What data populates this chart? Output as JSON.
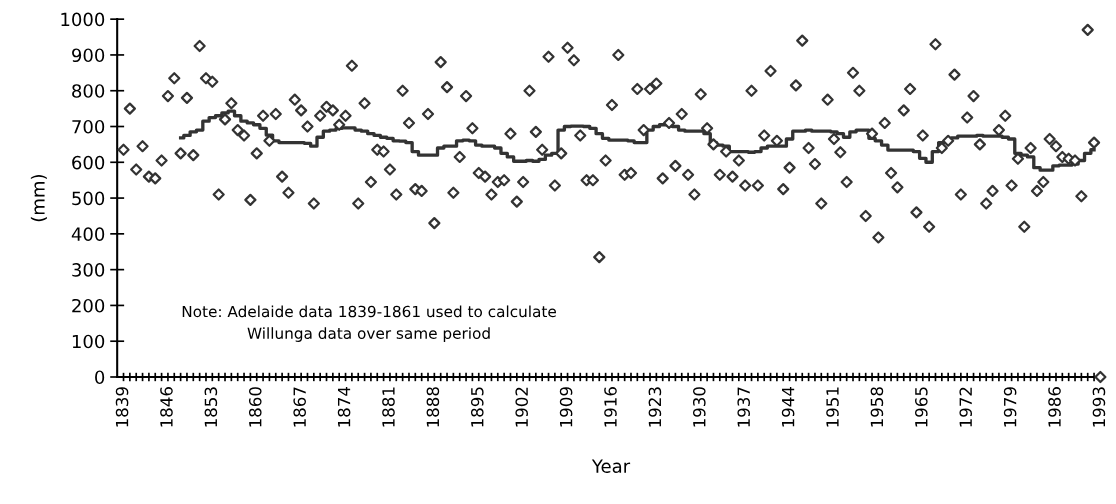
{
  "chart_data": {
    "type": "scatter",
    "xlabel": "Year",
    "ylabel": "(mm)",
    "categories": [
      "1839",
      null,
      null,
      null,
      null,
      null,
      null,
      "1846",
      null,
      null,
      null,
      null,
      null,
      null,
      "1853",
      null,
      null,
      null,
      null,
      null,
      null,
      "1860",
      null,
      null,
      null,
      null,
      null,
      null,
      "1867",
      null,
      null,
      null,
      null,
      null,
      null,
      "1874",
      null,
      null,
      null,
      null,
      null,
      null,
      "1881",
      null,
      null,
      null,
      null,
      null,
      null,
      "1888",
      null,
      null,
      null,
      null,
      null,
      null,
      "1895",
      null,
      null,
      null,
      null,
      null,
      null,
      "1902",
      null,
      null,
      null,
      null,
      null,
      null,
      "1909",
      null,
      null,
      null,
      null,
      null,
      null,
      "1916",
      null,
      null,
      null,
      null,
      null,
      null,
      "1923",
      null,
      null,
      null,
      null,
      null,
      null,
      "1930",
      null,
      null,
      null,
      null,
      null,
      null,
      "1937",
      null,
      null,
      null,
      null,
      null,
      null,
      "1944",
      null,
      null,
      null,
      null,
      null,
      null,
      "1951",
      null,
      null,
      null,
      null,
      null,
      null,
      "1958",
      null,
      null,
      null,
      null,
      null,
      null,
      "1965",
      null,
      null,
      null,
      null,
      null,
      null,
      "1972",
      null,
      null,
      null,
      null,
      null,
      null,
      "1979",
      null,
      null,
      null,
      null,
      null,
      null,
      "1986",
      null,
      null,
      null,
      null,
      null,
      null,
      "1993"
    ],
    "series": [
      {
        "color": "#333333",
        "marker": "diamond",
        "values": [
          635,
          750,
          580,
          645,
          560,
          555,
          605,
          785,
          835,
          625,
          780,
          620,
          925,
          835,
          825,
          510,
          720,
          765,
          690,
          675,
          495,
          625,
          730,
          660,
          735,
          560,
          515,
          775,
          745,
          700,
          485,
          730,
          755,
          745,
          705,
          730,
          870,
          485,
          765,
          545,
          635,
          630,
          580,
          510,
          800,
          710,
          525,
          520,
          735,
          430,
          880,
          810,
          515,
          615,
          785,
          695,
          570,
          560,
          510,
          545,
          550,
          680,
          490,
          545,
          800,
          685,
          635,
          895,
          535,
          625,
          920,
          885,
          675,
          550,
          550,
          335,
          605,
          760,
          900,
          565,
          570,
          805,
          690,
          805,
          820,
          555,
          710,
          590,
          735,
          565,
          510,
          790,
          695,
          650,
          565,
          630,
          560,
          605,
          535,
          800,
          535,
          675,
          855,
          660,
          525,
          585,
          815,
          940,
          640,
          595,
          485,
          775,
          665,
          628,
          545,
          850,
          800,
          450,
          680,
          390,
          710,
          570,
          530,
          745,
          805,
          460,
          675,
          420,
          930,
          640,
          660,
          845,
          510,
          725,
          785,
          650,
          485,
          520,
          690,
          730,
          535,
          610,
          420,
          640,
          520,
          545,
          665,
          645,
          615,
          610,
          605,
          505,
          970,
          655,
          0
        ]
      },
      {
        "type": "step",
        "color": "#333333",
        "marker": "none",
        "line_style": "solid",
        "values": [
          null,
          null,
          null,
          null,
          null,
          null,
          null,
          null,
          null,
          668,
          675,
          685,
          690,
          715,
          725,
          730,
          738,
          743,
          730,
          715,
          710,
          705,
          695,
          676,
          660,
          655,
          655,
          655,
          655,
          653,
          645,
          670,
          687,
          690,
          695,
          696,
          696,
          690,
          687,
          680,
          675,
          670,
          667,
          660,
          659,
          655,
          630,
          620,
          620,
          620,
          640,
          645,
          645,
          660,
          662,
          660,
          648,
          645,
          645,
          640,
          625,
          615,
          603,
          603,
          605,
          603,
          608,
          620,
          625,
          690,
          700,
          701,
          701,
          700,
          695,
          680,
          667,
          662,
          662,
          662,
          660,
          655,
          655,
          690,
          700,
          705,
          705,
          700,
          690,
          687,
          687,
          687,
          680,
          655,
          648,
          645,
          630,
          630,
          630,
          628,
          630,
          640,
          645,
          645,
          645,
          665,
          687,
          687,
          690,
          687,
          687,
          687,
          685,
          680,
          670,
          685,
          690,
          690,
          667,
          660,
          648,
          634,
          634,
          634,
          634,
          630,
          611,
          600,
          630,
          655,
          660,
          668,
          673,
          673,
          673,
          675,
          673,
          673,
          673,
          670,
          665,
          625,
          620,
          615,
          585,
          578,
          578,
          590,
          592,
          592,
          595,
          605,
          625,
          635,
          null
        ]
      }
    ],
    "ylim": [
      0,
      1000
    ],
    "yticks": [
      0,
      100,
      200,
      300,
      400,
      500,
      600,
      700,
      800,
      900,
      1000
    ],
    "grid": false,
    "legend": false,
    "annotations": [
      "Note: Adelaide data 1839-1861 used to calculate\nWillunga data over same period"
    ]
  }
}
